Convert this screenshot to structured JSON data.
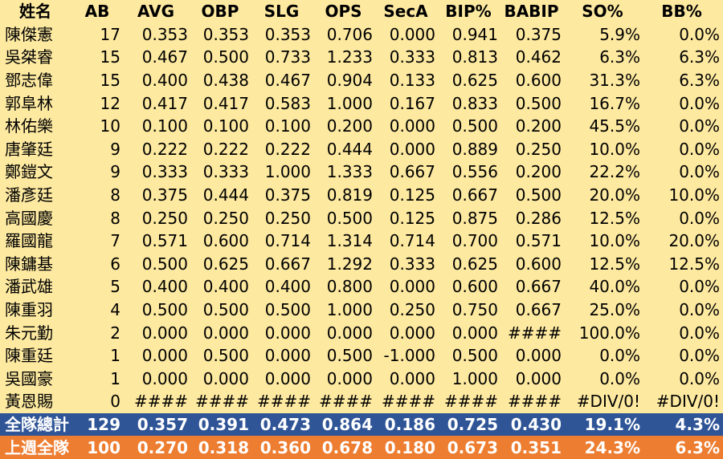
{
  "headers": [
    "姓名",
    "AB",
    "AVG",
    "OBP",
    "SLG",
    "OPS",
    "SecA",
    "BIP%",
    "BABIP",
    "SO%",
    "BB%"
  ],
  "rows": [
    [
      "陳傑憲",
      "17",
      "0.353",
      "0.353",
      "0.353",
      "0.706",
      "0.000",
      "0.941",
      "0.375",
      "5.9%",
      "0.0%"
    ],
    [
      "吳桀睿",
      "15",
      "0.467",
      "0.500",
      "0.733",
      "1.233",
      "0.333",
      "0.813",
      "0.462",
      "6.3%",
      "6.3%"
    ],
    [
      "鄧志偉",
      "15",
      "0.400",
      "0.438",
      "0.467",
      "0.904",
      "0.133",
      "0.625",
      "0.600",
      "31.3%",
      "6.3%"
    ],
    [
      "郭阜林",
      "12",
      "0.417",
      "0.417",
      "0.583",
      "1.000",
      "0.167",
      "0.833",
      "0.500",
      "16.7%",
      "0.0%"
    ],
    [
      "林佑樂",
      "10",
      "0.100",
      "0.100",
      "0.100",
      "0.200",
      "0.000",
      "0.500",
      "0.200",
      "45.5%",
      "0.0%"
    ],
    [
      "唐肇廷",
      "9",
      "0.222",
      "0.222",
      "0.222",
      "0.444",
      "0.000",
      "0.889",
      "0.250",
      "10.0%",
      "0.0%"
    ],
    [
      "鄭鎧文",
      "9",
      "0.333",
      "0.333",
      "1.000",
      "1.333",
      "0.667",
      "0.556",
      "0.200",
      "22.2%",
      "0.0%"
    ],
    [
      "潘彥廷",
      "8",
      "0.375",
      "0.444",
      "0.375",
      "0.819",
      "0.125",
      "0.667",
      "0.500",
      "20.0%",
      "10.0%"
    ],
    [
      "高國慶",
      "8",
      "0.250",
      "0.250",
      "0.250",
      "0.500",
      "0.125",
      "0.875",
      "0.286",
      "12.5%",
      "0.0%"
    ],
    [
      "羅國龍",
      "7",
      "0.571",
      "0.600",
      "0.714",
      "1.314",
      "0.714",
      "0.700",
      "0.571",
      "10.0%",
      "20.0%"
    ],
    [
      "陳鏞基",
      "6",
      "0.500",
      "0.625",
      "0.667",
      "1.292",
      "0.333",
      "0.625",
      "0.600",
      "12.5%",
      "12.5%"
    ],
    [
      "潘武雄",
      "5",
      "0.400",
      "0.400",
      "0.400",
      "0.800",
      "0.000",
      "0.600",
      "0.667",
      "40.0%",
      "0.0%"
    ],
    [
      "陳重羽",
      "4",
      "0.500",
      "0.500",
      "0.500",
      "1.000",
      "0.250",
      "0.750",
      "0.667",
      "25.0%",
      "0.0%"
    ],
    [
      "朱元勤",
      "2",
      "0.000",
      "0.000",
      "0.000",
      "0.000",
      "0.000",
      "0.000",
      "####",
      "100.0%",
      "0.0%"
    ],
    [
      "陳重廷",
      "1",
      "0.000",
      "0.500",
      "0.000",
      "0.500",
      "-1.000",
      "0.500",
      "0.000",
      "0.0%",
      "0.0%"
    ],
    [
      "吳國豪",
      "1",
      "0.000",
      "0.000",
      "0.000",
      "0.000",
      "0.000",
      "1.000",
      "0.000",
      "0.0%",
      "0.0%"
    ],
    [
      "黃恩賜",
      "0",
      "####",
      "####",
      "####",
      "####",
      "####",
      "####",
      "####",
      "#DIV/0!",
      "#DIV/0!"
    ]
  ],
  "total": [
    "全隊總計",
    "129",
    "0.357",
    "0.391",
    "0.473",
    "0.864",
    "0.186",
    "0.725",
    "0.430",
    "19.1%",
    "4.3%"
  ],
  "last_week": [
    "上週全隊",
    "100",
    "0.270",
    "0.318",
    "0.360",
    "0.678",
    "0.180",
    "0.673",
    "0.351",
    "24.3%",
    "6.3%"
  ],
  "colors": {
    "header_bg": "#fde9a0",
    "total_bg": "#2f5597",
    "last_week_bg": "#ed7d31"
  }
}
